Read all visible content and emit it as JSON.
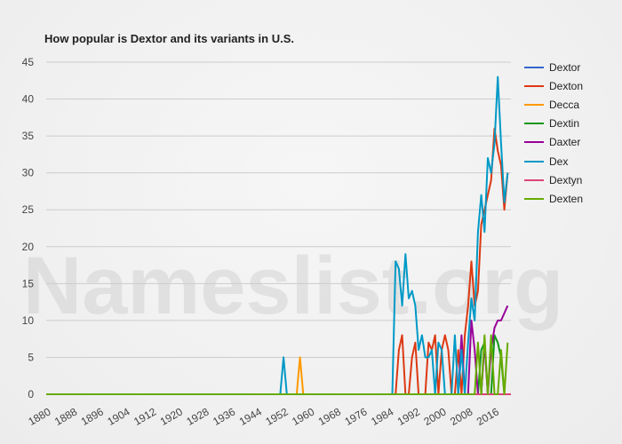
{
  "chart_data": {
    "type": "line",
    "title": "How popular is Dextor and its variants in U.S.",
    "watermark": "Nameslist.org",
    "xlabel": "",
    "ylabel": "",
    "xlim": [
      1880,
      2021
    ],
    "ylim": [
      0,
      45
    ],
    "yticks": [
      0,
      5,
      10,
      15,
      20,
      25,
      30,
      35,
      40,
      45
    ],
    "xticks": [
      1880,
      1888,
      1896,
      1904,
      1912,
      1920,
      1928,
      1936,
      1944,
      1952,
      1960,
      1968,
      1976,
      1984,
      1992,
      2000,
      2008,
      2016
    ],
    "grid": true,
    "legend_position": "right",
    "series": [
      {
        "name": "Dextor",
        "color": "#3366cc",
        "points": [
          [
            1880,
            0
          ],
          [
            2021,
            0
          ]
        ]
      },
      {
        "name": "Dexton",
        "color": "#dc3912",
        "points": [
          [
            1880,
            0
          ],
          [
            1986,
            0
          ],
          [
            1987,
            6
          ],
          [
            1988,
            8
          ],
          [
            1989,
            0
          ],
          [
            1990,
            0
          ],
          [
            1991,
            5
          ],
          [
            1992,
            7
          ],
          [
            1993,
            0
          ],
          [
            1995,
            0
          ],
          [
            1996,
            7
          ],
          [
            1997,
            6
          ],
          [
            1998,
            8
          ],
          [
            1999,
            0
          ],
          [
            2000,
            6
          ],
          [
            2001,
            8
          ],
          [
            2002,
            6
          ],
          [
            2003,
            0
          ],
          [
            2004,
            0
          ],
          [
            2005,
            6
          ],
          [
            2006,
            0
          ],
          [
            2007,
            8
          ],
          [
            2008,
            12
          ],
          [
            2009,
            18
          ],
          [
            2010,
            12
          ],
          [
            2011,
            14
          ],
          [
            2012,
            23
          ],
          [
            2013,
            25
          ],
          [
            2014,
            27
          ],
          [
            2015,
            29
          ],
          [
            2016,
            36
          ],
          [
            2017,
            33
          ],
          [
            2018,
            31
          ],
          [
            2019,
            25
          ],
          [
            2020,
            30
          ]
        ]
      },
      {
        "name": "Decca",
        "color": "#ff9900",
        "points": [
          [
            1880,
            0
          ],
          [
            1956,
            0
          ],
          [
            1957,
            5
          ],
          [
            1958,
            0
          ],
          [
            2021,
            0
          ]
        ]
      },
      {
        "name": "Dextin",
        "color": "#109618",
        "points": [
          [
            1880,
            0
          ],
          [
            2011,
            0
          ],
          [
            2012,
            6
          ],
          [
            2013,
            7
          ],
          [
            2014,
            0
          ],
          [
            2015,
            0
          ],
          [
            2016,
            8
          ],
          [
            2017,
            7
          ],
          [
            2018,
            5
          ],
          [
            2019,
            0
          ],
          [
            2021,
            0
          ]
        ]
      },
      {
        "name": "Daxter",
        "color": "#990099",
        "points": [
          [
            1880,
            0
          ],
          [
            2005,
            0
          ],
          [
            2006,
            8
          ],
          [
            2007,
            0
          ],
          [
            2008,
            0
          ],
          [
            2009,
            10
          ],
          [
            2010,
            6
          ],
          [
            2011,
            0
          ],
          [
            2012,
            0
          ],
          [
            2013,
            7
          ],
          [
            2014,
            0
          ],
          [
            2015,
            6
          ],
          [
            2016,
            9
          ],
          [
            2017,
            10
          ],
          [
            2018,
            10
          ],
          [
            2019,
            11
          ],
          [
            2020,
            12
          ]
        ]
      },
      {
        "name": "Dex",
        "color": "#0099c6",
        "points": [
          [
            1880,
            0
          ],
          [
            1951,
            0
          ],
          [
            1952,
            5
          ],
          [
            1953,
            0
          ],
          [
            1985,
            0
          ],
          [
            1986,
            18
          ],
          [
            1987,
            17
          ],
          [
            1988,
            12
          ],
          [
            1989,
            19
          ],
          [
            1990,
            13
          ],
          [
            1991,
            14
          ],
          [
            1992,
            12
          ],
          [
            1993,
            6
          ],
          [
            1994,
            8
          ],
          [
            1995,
            5
          ],
          [
            1996,
            5
          ],
          [
            1997,
            6
          ],
          [
            1998,
            0
          ],
          [
            1999,
            7
          ],
          [
            2000,
            6
          ],
          [
            2001,
            0
          ],
          [
            2002,
            0
          ],
          [
            2003,
            0
          ],
          [
            2004,
            8
          ],
          [
            2005,
            0
          ],
          [
            2006,
            6
          ],
          [
            2007,
            0
          ],
          [
            2008,
            7
          ],
          [
            2009,
            13
          ],
          [
            2010,
            10
          ],
          [
            2011,
            22
          ],
          [
            2012,
            27
          ],
          [
            2013,
            22
          ],
          [
            2014,
            32
          ],
          [
            2015,
            30
          ],
          [
            2016,
            34
          ],
          [
            2017,
            43
          ],
          [
            2018,
            34
          ],
          [
            2019,
            26
          ],
          [
            2020,
            30
          ]
        ]
      },
      {
        "name": "Dextyn",
        "color": "#dd4477",
        "points": [
          [
            1880,
            0
          ],
          [
            2021,
            0
          ]
        ]
      },
      {
        "name": "Dexten",
        "color": "#66aa00",
        "points": [
          [
            1880,
            0
          ],
          [
            2010,
            0
          ],
          [
            2011,
            7
          ],
          [
            2012,
            0
          ],
          [
            2013,
            8
          ],
          [
            2014,
            0
          ],
          [
            2015,
            8
          ],
          [
            2016,
            0
          ],
          [
            2017,
            0
          ],
          [
            2018,
            6
          ],
          [
            2019,
            0
          ],
          [
            2020,
            7
          ]
        ]
      }
    ]
  }
}
